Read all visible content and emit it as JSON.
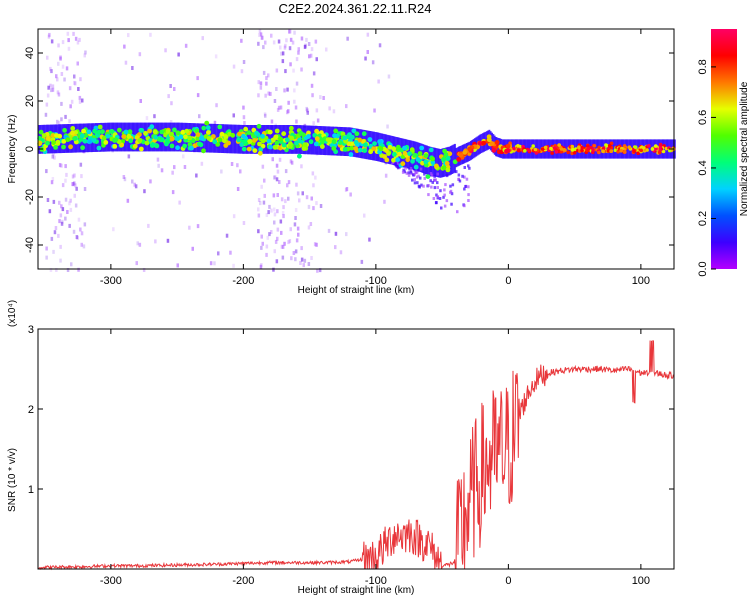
{
  "figure": {
    "title": "C2E2.2024.361.22.11.R24"
  },
  "chart_data": [
    {
      "type": "heatmap",
      "title": "C2E2.2024.361.22.11.R24",
      "xlabel": "Height of straight line (km)",
      "ylabel": "Frequency (Hz)",
      "xlim": [
        -355,
        125
      ],
      "ylim": [
        -50,
        50
      ],
      "xticks": [
        -300,
        -200,
        -100,
        0,
        100
      ],
      "yticks": [
        -40,
        -20,
        0,
        20,
        40
      ],
      "grid": false,
      "colorbar": {
        "label": "Normalized spectral amplitude",
        "range": [
          0,
          0.95
        ],
        "ticks": [
          0.0,
          0.2,
          0.4,
          0.6,
          0.8
        ],
        "colormap": [
          "#b400ff",
          "#3c00ff",
          "#0050ff",
          "#00d2ff",
          "#00ff78",
          "#50ff00",
          "#e6ff00",
          "#ff7800",
          "#ff0000",
          "#ff0064"
        ]
      },
      "ridge": {
        "x": [
          -355,
          -300,
          -250,
          -200,
          -160,
          -120,
          -100,
          -85,
          -70,
          -60,
          -52,
          -45,
          -38,
          -30,
          -22,
          -15,
          -10,
          -5,
          0,
          50,
          125
        ],
        "y": [
          4,
          5,
          5,
          4,
          4,
          3,
          1,
          -1,
          -3,
          -5,
          -6,
          -5,
          -3,
          -1,
          2,
          4,
          1,
          0,
          0,
          0,
          0
        ]
      }
    },
    {
      "type": "line",
      "xlabel": "Height of straight line (km)",
      "ylabel": "SNR (10 * v/v)",
      "y_multiplier": "(x10⁴)",
      "xlim": [
        -355,
        125
      ],
      "ylim": [
        0,
        3
      ],
      "xticks": [
        -300,
        -200,
        -100,
        0,
        100
      ],
      "yticks": [
        1,
        2,
        3
      ],
      "grid": false,
      "color": "#e8363a",
      "series": [
        {
          "x": [
            -355,
            -320,
            -300,
            -280,
            -250,
            -220,
            -200,
            -180,
            -160,
            -140,
            -120,
            -110,
            -100,
            -95,
            -90,
            -85,
            -80,
            -75,
            -70,
            -65,
            -60,
            -55,
            -50,
            -45,
            -40,
            -35,
            -30,
            -25,
            -20,
            -15,
            -10,
            -5,
            0,
            5,
            10,
            15,
            20,
            25,
            30,
            40,
            50,
            60,
            70,
            80,
            90,
            95,
            100,
            105,
            110,
            115,
            120,
            125
          ],
          "y": [
            0.02,
            0.03,
            0.04,
            0.04,
            0.05,
            0.06,
            0.07,
            0.08,
            0.08,
            0.08,
            0.09,
            0.12,
            0.15,
            0.25,
            0.35,
            0.45,
            0.42,
            0.45,
            0.4,
            0.35,
            0.3,
            0.15,
            0.05,
            0.05,
            0.1,
            0.5,
            0.8,
            1.0,
            1.2,
            1.35,
            1.4,
            1.45,
            1.5,
            1.75,
            2.0,
            2.2,
            2.35,
            2.42,
            2.45,
            2.48,
            2.5,
            2.5,
            2.5,
            2.48,
            2.5,
            2.48,
            2.45,
            2.46,
            2.45,
            2.44,
            2.42,
            2.42
          ]
        }
      ]
    }
  ]
}
